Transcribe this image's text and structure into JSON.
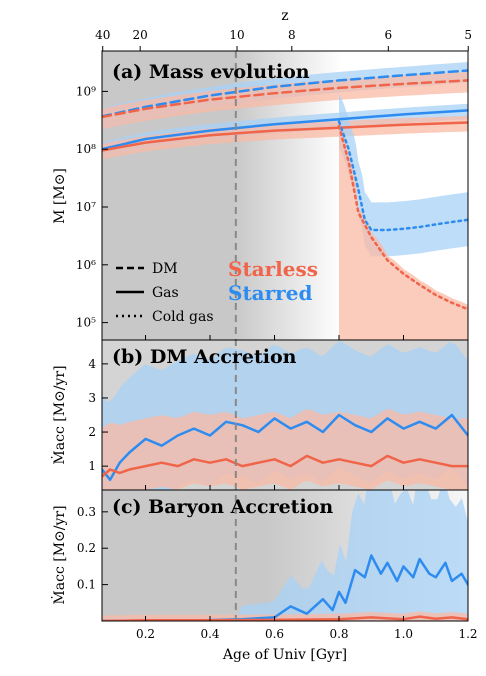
{
  "figure": {
    "top_axis_label": "z",
    "x_label": "Age of Univ [Gyr]",
    "x_ticks": [
      "0.2",
      "0.4",
      "0.6",
      "0.8",
      "1.0",
      "1.2"
    ],
    "top_ticks": [
      "40",
      "20",
      "10",
      "8",
      "6",
      "5"
    ],
    "vline_age_gyr": 0.48,
    "colors": {
      "starless": "#f0644a",
      "starred": "#2e8cf0",
      "starless_band": "#f9b9a6",
      "starred_band": "#a8d2f5",
      "shade": "#c8c8c8",
      "vline": "#888888"
    }
  },
  "chart_data": [
    {
      "type": "line",
      "panel": "a",
      "title": "(a) Mass evolution",
      "ylabel": "M [M⊙]",
      "y_scale": "log",
      "ylim": [
        50000,
        5000000000
      ],
      "xlim": [
        0.065,
        1.2
      ],
      "y_ticks": [
        "10⁵",
        "10⁶",
        "10⁷",
        "10⁸",
        "10⁹"
      ],
      "legend_styles": [
        "DM",
        "Gas",
        "Cold gas"
      ],
      "legend_groups": [
        "Starless",
        "Starred"
      ],
      "series": [
        {
          "group": "Starred",
          "style": "DM",
          "x": [
            0.065,
            0.2,
            0.4,
            0.6,
            0.8,
            1.0,
            1.2
          ],
          "y": [
            370000000,
            540000000,
            850000000,
            1200000000,
            1550000000,
            1900000000,
            2300000000
          ]
        },
        {
          "group": "Starless",
          "style": "DM",
          "x": [
            0.065,
            0.2,
            0.4,
            0.6,
            0.8,
            1.0,
            1.2
          ],
          "y": [
            360000000,
            500000000,
            720000000,
            930000000,
            1150000000,
            1350000000,
            1550000000
          ]
        },
        {
          "group": "Starred",
          "style": "Gas",
          "x": [
            0.065,
            0.2,
            0.4,
            0.6,
            0.8,
            1.0,
            1.2
          ],
          "y": [
            100000000,
            150000000,
            210000000,
            270000000,
            330000000,
            400000000,
            470000000
          ]
        },
        {
          "group": "Starless",
          "style": "Gas",
          "x": [
            0.065,
            0.2,
            0.4,
            0.6,
            0.8,
            1.0,
            1.2
          ],
          "y": [
            95000000,
            130000000,
            175000000,
            210000000,
            235000000,
            265000000,
            290000000
          ]
        },
        {
          "group": "Starred",
          "style": "Cold gas",
          "x": [
            0.8,
            0.83,
            0.86,
            0.88,
            0.9,
            0.95,
            1.0,
            1.05,
            1.1,
            1.15,
            1.2
          ],
          "y": [
            300000000,
            100000000,
            20000000,
            6000000,
            4000000,
            4000000,
            4200000,
            4500000,
            5000000,
            5500000,
            6000000
          ]
        },
        {
          "group": "Starless",
          "style": "Cold gas",
          "x": [
            0.8,
            0.83,
            0.86,
            0.9,
            0.95,
            1.0,
            1.05,
            1.1,
            1.15,
            1.2
          ],
          "y": [
            250000000,
            60000000,
            8000000,
            3000000,
            1200000,
            700000,
            450000,
            300000,
            220000,
            170000
          ]
        }
      ]
    },
    {
      "type": "line",
      "panel": "b",
      "title": "(b) DM Accretion",
      "ylabel": "Ṁacc [M⊙/yr]",
      "ylim": [
        0.3,
        4.7
      ],
      "xlim": [
        0.065,
        1.2
      ],
      "y_ticks": [
        "1",
        "2",
        "3",
        "4"
      ],
      "series": [
        {
          "group": "Starred",
          "x": [
            0.065,
            0.09,
            0.12,
            0.15,
            0.2,
            0.25,
            0.3,
            0.35,
            0.4,
            0.45,
            0.5,
            0.55,
            0.6,
            0.65,
            0.7,
            0.75,
            0.8,
            0.85,
            0.9,
            0.95,
            1.0,
            1.05,
            1.1,
            1.15,
            1.2
          ],
          "y": [
            0.9,
            0.6,
            1.1,
            1.4,
            1.8,
            1.6,
            1.9,
            2.1,
            1.9,
            2.3,
            2.2,
            2.0,
            2.4,
            2.1,
            2.3,
            2.0,
            2.5,
            2.2,
            2.0,
            2.4,
            2.1,
            2.3,
            2.1,
            2.5,
            1.9
          ]
        },
        {
          "group": "Starless",
          "x": [
            0.065,
            0.09,
            0.12,
            0.15,
            0.2,
            0.25,
            0.3,
            0.35,
            0.4,
            0.45,
            0.5,
            0.55,
            0.6,
            0.65,
            0.7,
            0.75,
            0.8,
            0.85,
            0.9,
            0.95,
            1.0,
            1.05,
            1.1,
            1.15,
            1.2
          ],
          "y": [
            0.7,
            0.9,
            0.8,
            0.9,
            1.0,
            1.1,
            1.0,
            1.2,
            1.1,
            1.2,
            1.0,
            1.1,
            1.2,
            1.0,
            1.3,
            1.1,
            1.2,
            1.1,
            1.0,
            1.3,
            1.1,
            1.2,
            1.1,
            1.0,
            1.0
          ]
        }
      ]
    },
    {
      "type": "line",
      "panel": "c",
      "title": "(c) Baryon Accretion",
      "ylabel": "Ṁacc [M⊙/yr]",
      "ylim": [
        0,
        0.36
      ],
      "xlim": [
        0.065,
        1.2
      ],
      "y_ticks": [
        "0.1",
        "0.2",
        "0.3"
      ],
      "series": [
        {
          "group": "Starred",
          "x": [
            0.065,
            0.3,
            0.5,
            0.6,
            0.65,
            0.7,
            0.75,
            0.78,
            0.8,
            0.82,
            0.85,
            0.88,
            0.9,
            0.93,
            0.95,
            0.98,
            1.0,
            1.03,
            1.05,
            1.08,
            1.1,
            1.13,
            1.15,
            1.18,
            1.2
          ],
          "y": [
            0,
            0,
            0.005,
            0.01,
            0.04,
            0.02,
            0.06,
            0.03,
            0.08,
            0.05,
            0.14,
            0.12,
            0.18,
            0.13,
            0.16,
            0.11,
            0.15,
            0.12,
            0.17,
            0.13,
            0.12,
            0.16,
            0.11,
            0.13,
            0.1
          ]
        },
        {
          "group": "Starless",
          "x": [
            0.065,
            0.2,
            0.4,
            0.6,
            0.8,
            0.9,
            1.0,
            1.05,
            1.1,
            1.15,
            1.2
          ],
          "y": [
            0,
            0.002,
            0.002,
            0.003,
            0.005,
            0.01,
            0.005,
            0.012,
            0.006,
            0.01,
            0.005
          ]
        }
      ]
    }
  ]
}
